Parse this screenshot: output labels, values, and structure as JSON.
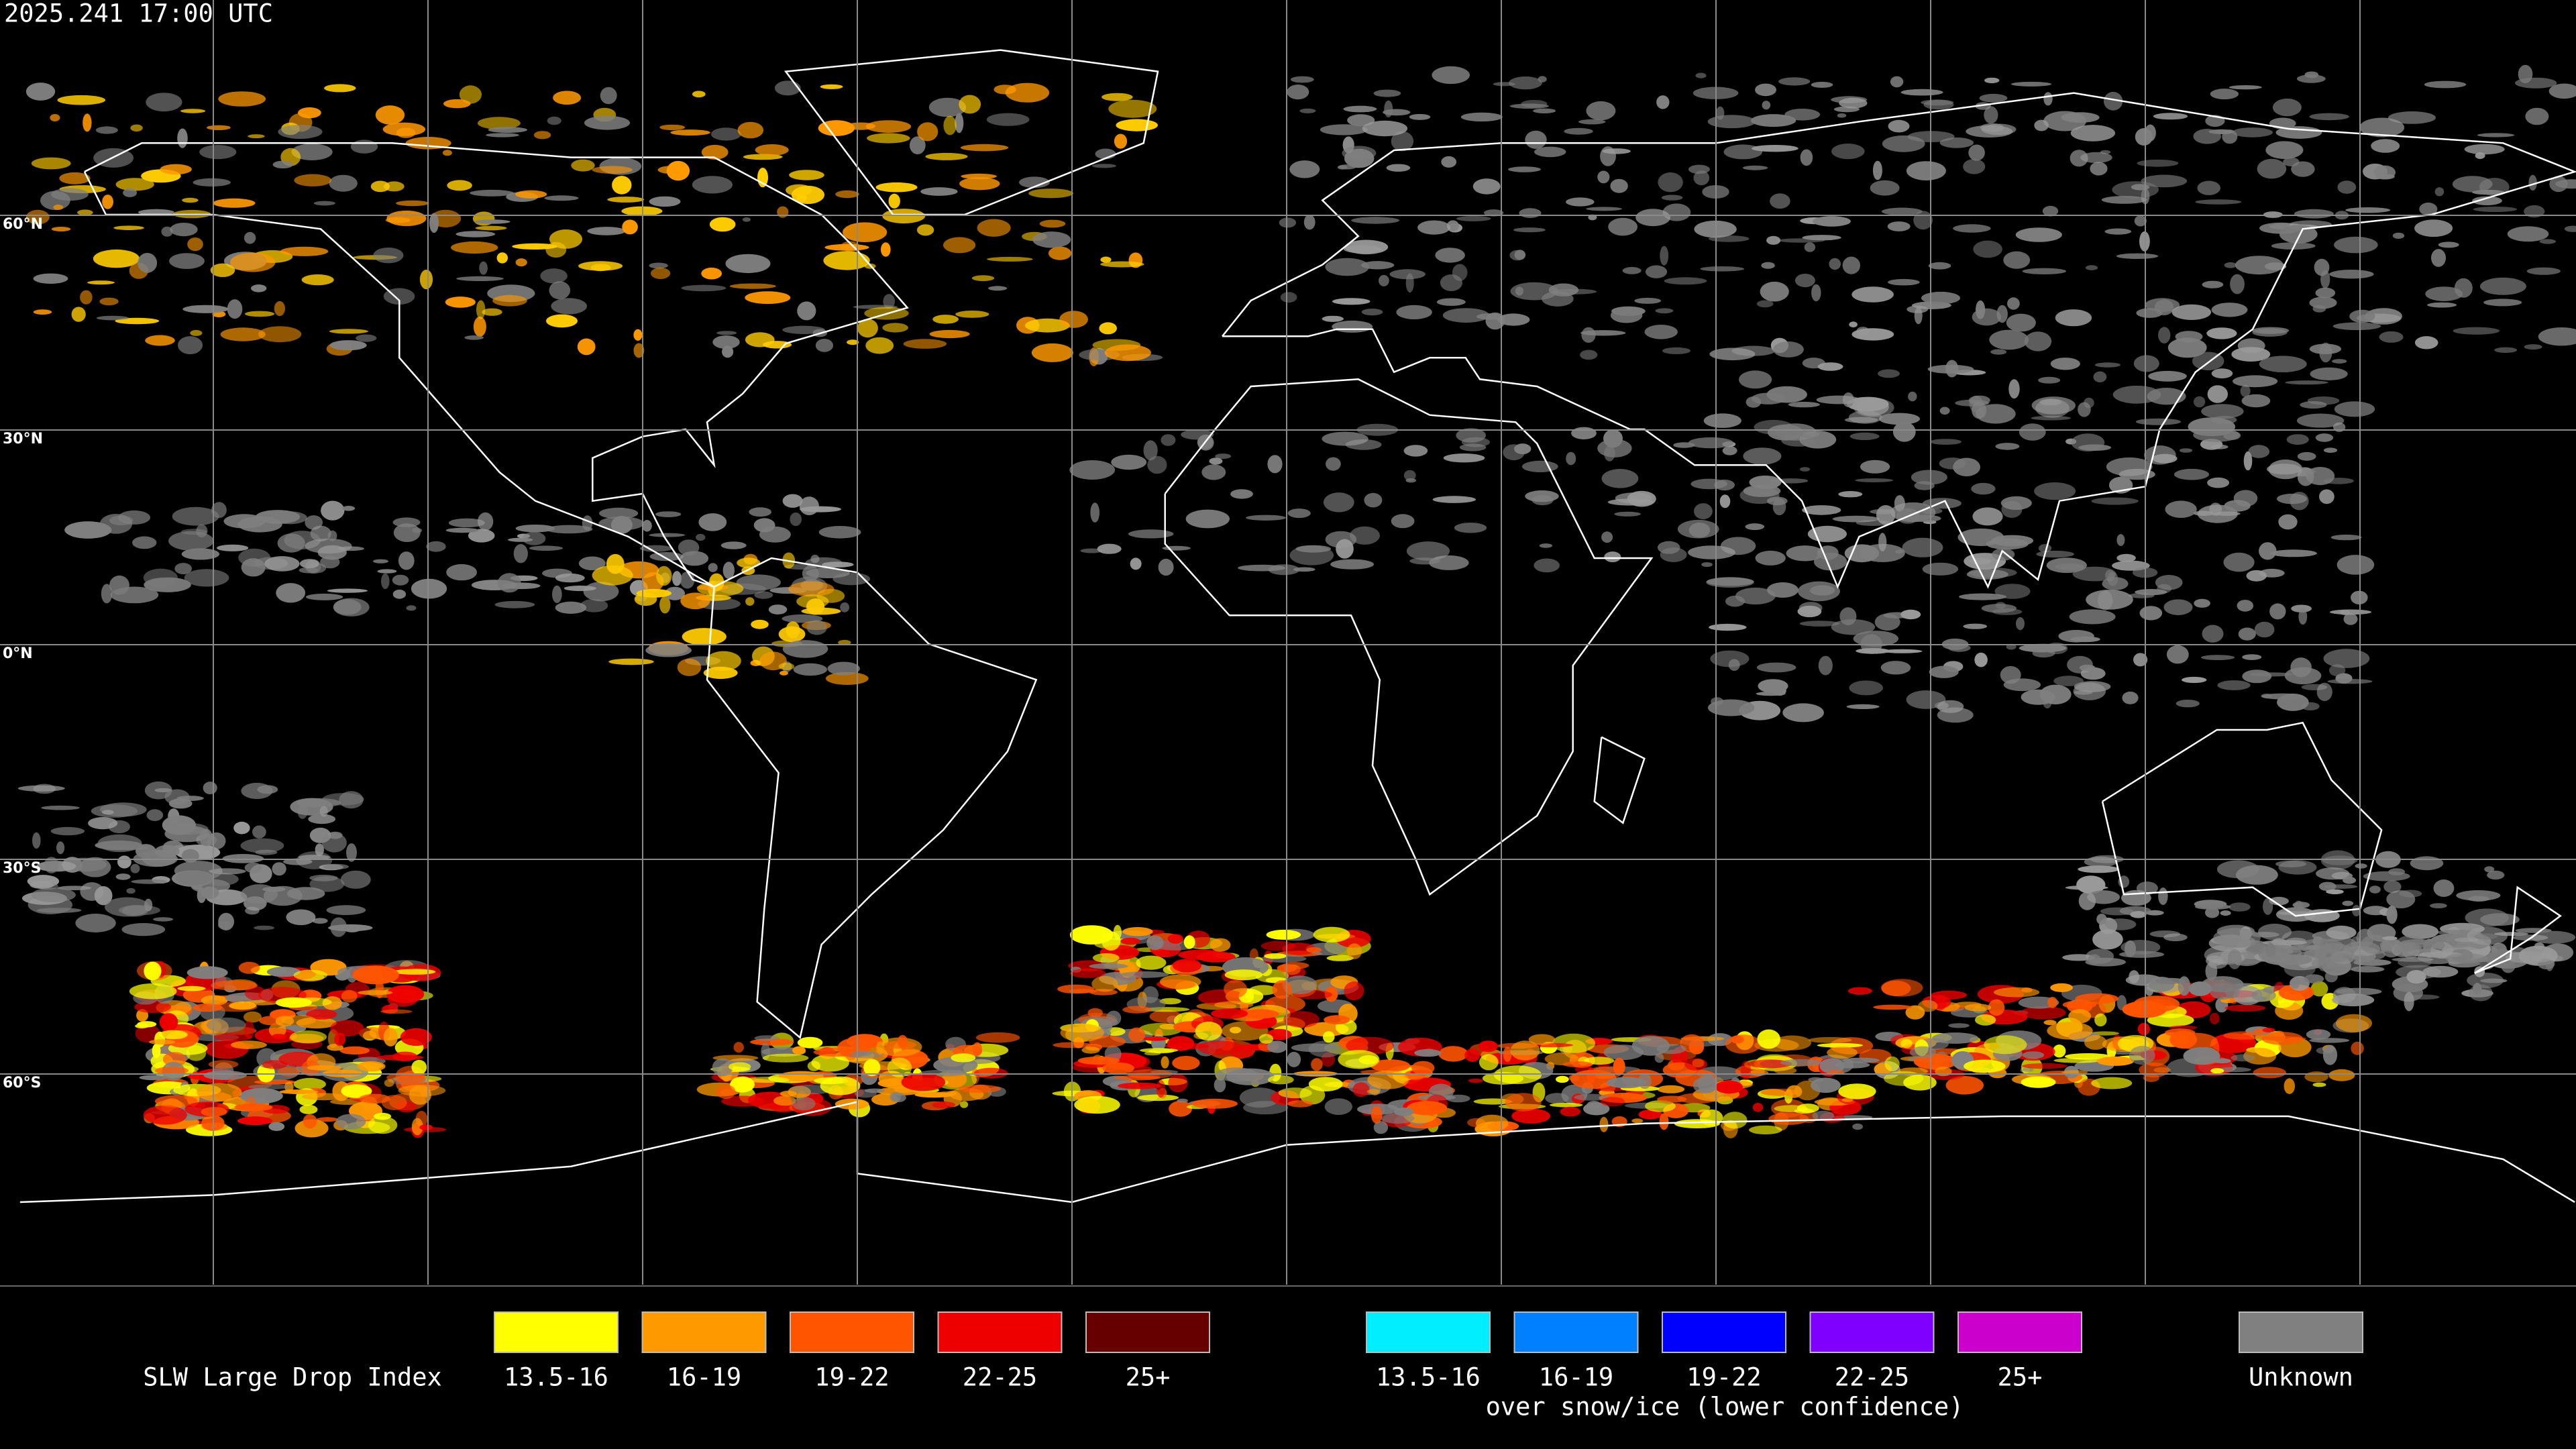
{
  "timestamp": "2025.241 17:00 UTC",
  "map": {
    "latitude_labels": [
      "60°N",
      "30°N",
      "0°N",
      "30°S",
      "60°S"
    ]
  },
  "legend": {
    "title": "SLW Large Drop Index",
    "groups": [
      {
        "items": [
          {
            "label": "13.5-16",
            "color": "#ffff00"
          },
          {
            "label": "16-19",
            "color": "#ff9900"
          },
          {
            "label": "19-22",
            "color": "#ff5500"
          },
          {
            "label": "22-25",
            "color": "#ee0000"
          },
          {
            "label": "25+",
            "color": "#660000"
          }
        ]
      },
      {
        "caption": "over snow/ice (lower confidence)",
        "items": [
          {
            "label": "13.5-16",
            "color": "#00eeff"
          },
          {
            "label": "16-19",
            "color": "#0080ff"
          },
          {
            "label": "19-22",
            "color": "#0000ff"
          },
          {
            "label": "22-25",
            "color": "#7f00ff"
          },
          {
            "label": "25+",
            "color": "#cc00cc"
          }
        ]
      },
      {
        "items": [
          {
            "label": "Unknown",
            "color": "#808080"
          }
        ]
      }
    ]
  }
}
